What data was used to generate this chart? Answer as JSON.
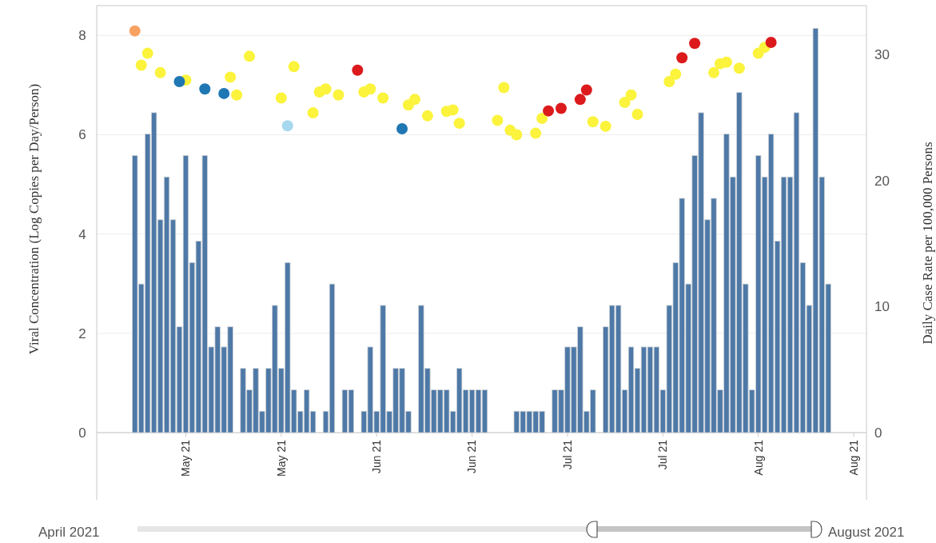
{
  "chart_data": {
    "type": "bar",
    "ylabel": "Viral Concentration (Log Copies per Day/Person)",
    "y2label": "Daily Case Rate per 100,000 Persons",
    "xlim": [
      "2021-04-19",
      "2021-08-18"
    ],
    "xticks": [
      {
        "value": "2021-05-03",
        "label": "May 21"
      },
      {
        "value": "2021-05-18",
        "label": "May 21"
      },
      {
        "value": "2021-06-02",
        "label": "Jun 21"
      },
      {
        "value": "2021-06-17",
        "label": "Jun 21"
      },
      {
        "value": "2021-07-02",
        "label": "Jul 21"
      },
      {
        "value": "2021-07-17",
        "label": "Jul 21"
      },
      {
        "value": "2021-08-01",
        "label": "Aug 21"
      },
      {
        "value": "2021-08-16",
        "label": "Aug 21"
      }
    ],
    "ylim": [
      0,
      8.6
    ],
    "yticks": [
      0,
      2,
      4,
      6,
      8
    ],
    "y2lim": [
      0,
      33.9
    ],
    "y2ticks": [
      0,
      10,
      20,
      30
    ],
    "grid": "y",
    "marker": "circle",
    "annotations": [
      "April 2021",
      "August 2021"
    ],
    "series": [
      {
        "axis": "y2",
        "color": "#4e79a7",
        "x": [
          "2021-04-25",
          "2021-04-26",
          "2021-04-27",
          "2021-04-28",
          "2021-04-29",
          "2021-04-30",
          "2021-05-01",
          "2021-05-02",
          "2021-05-03",
          "2021-05-04",
          "2021-05-05",
          "2021-05-06",
          "2021-05-07",
          "2021-05-08",
          "2021-05-09",
          "2021-05-10",
          "2021-05-11",
          "2021-05-12",
          "2021-05-13",
          "2021-05-14",
          "2021-05-15",
          "2021-05-16",
          "2021-05-17",
          "2021-05-18",
          "2021-05-19",
          "2021-05-20",
          "2021-05-21",
          "2021-05-22",
          "2021-05-23",
          "2021-05-24",
          "2021-05-25",
          "2021-05-26",
          "2021-05-27",
          "2021-05-28",
          "2021-05-29",
          "2021-05-30",
          "2021-05-31",
          "2021-06-01",
          "2021-06-02",
          "2021-06-03",
          "2021-06-04",
          "2021-06-05",
          "2021-06-06",
          "2021-06-07",
          "2021-06-08",
          "2021-06-09",
          "2021-06-10",
          "2021-06-11",
          "2021-06-12",
          "2021-06-13",
          "2021-06-14",
          "2021-06-15",
          "2021-06-16",
          "2021-06-17",
          "2021-06-18",
          "2021-06-19",
          "2021-06-20",
          "2021-06-21",
          "2021-06-22",
          "2021-06-23",
          "2021-06-24",
          "2021-06-25",
          "2021-06-26",
          "2021-06-27",
          "2021-06-28",
          "2021-06-29",
          "2021-06-30",
          "2021-07-01",
          "2021-07-02",
          "2021-07-03",
          "2021-07-04",
          "2021-07-05",
          "2021-07-06",
          "2021-07-07",
          "2021-07-08",
          "2021-07-09",
          "2021-07-10",
          "2021-07-11",
          "2021-07-12",
          "2021-07-13",
          "2021-07-14",
          "2021-07-15",
          "2021-07-16",
          "2021-07-17",
          "2021-07-18",
          "2021-07-19",
          "2021-07-20",
          "2021-07-21",
          "2021-07-22",
          "2021-07-23",
          "2021-07-24",
          "2021-07-25",
          "2021-07-26",
          "2021-07-27",
          "2021-07-28",
          "2021-07-29",
          "2021-07-30",
          "2021-07-31",
          "2021-08-01",
          "2021-08-02",
          "2021-08-03",
          "2021-08-04",
          "2021-08-05",
          "2021-08-06",
          "2021-08-07",
          "2021-08-08",
          "2021-08-09",
          "2021-08-10",
          "2021-08-11",
          "2021-08-12"
        ],
        "values": [
          22.0,
          11.8,
          23.7,
          25.4,
          16.9,
          20.3,
          16.9,
          8.4,
          22.0,
          13.5,
          15.2,
          22.0,
          6.8,
          8.4,
          6.8,
          8.4,
          0,
          5.1,
          3.4,
          5.1,
          1.7,
          5.1,
          10.1,
          5.1,
          13.5,
          3.4,
          1.7,
          3.4,
          1.7,
          0,
          1.7,
          11.8,
          0,
          3.4,
          3.4,
          0,
          1.7,
          6.8,
          1.7,
          10.1,
          1.7,
          5.1,
          5.1,
          1.7,
          0,
          10.1,
          5.1,
          3.4,
          3.4,
          3.4,
          1.7,
          5.1,
          3.4,
          3.4,
          3.4,
          3.4,
          0,
          0,
          0,
          0,
          1.7,
          1.7,
          1.7,
          1.7,
          1.7,
          0,
          3.4,
          3.4,
          6.8,
          6.8,
          8.4,
          1.7,
          3.4,
          0,
          8.4,
          10.1,
          10.1,
          3.4,
          6.8,
          5.1,
          6.8,
          6.8,
          6.8,
          3.4,
          10.1,
          13.5,
          18.6,
          11.8,
          22.0,
          25.4,
          16.9,
          18.6,
          3.4,
          23.7,
          20.3,
          27.0,
          11.8,
          3.4,
          22.0,
          20.3,
          23.7,
          15.2,
          20.3,
          20.3,
          25.4,
          13.5,
          10.1,
          32.1,
          20.3,
          11.8
        ]
      },
      {
        "type": "scatter",
        "color": "#f8a262",
        "x": [
          "2021-04-25"
        ],
        "values": [
          8.09
        ]
      },
      {
        "type": "scatter",
        "color": "#fbf33c",
        "x": [
          "2021-04-26",
          "2021-04-27",
          "2021-04-29",
          "2021-05-03",
          "2021-05-10",
          "2021-05-11",
          "2021-05-13",
          "2021-05-18",
          "2021-05-20",
          "2021-05-23",
          "2021-05-24",
          "2021-05-25",
          "2021-05-27",
          "2021-05-31",
          "2021-06-01",
          "2021-06-03",
          "2021-06-07",
          "2021-06-08",
          "2021-06-10",
          "2021-06-13",
          "2021-06-14",
          "2021-06-15",
          "2021-06-21",
          "2021-06-22",
          "2021-06-28",
          "2021-07-06",
          "2021-07-11",
          "2021-07-12",
          "2021-07-13",
          "2021-07-18",
          "2021-07-19",
          "2021-07-25",
          "2021-07-26",
          "2021-07-27",
          "2021-07-29",
          "2021-08-01",
          "2021-08-02"
        ],
        "values": [
          7.4,
          7.64,
          7.25,
          7.1,
          7.16,
          6.8,
          7.58,
          6.74,
          7.37,
          6.44,
          6.86,
          6.92,
          6.8,
          6.86,
          6.92,
          6.74,
          6.6,
          6.71,
          6.38,
          6.47,
          6.5,
          6.23,
          6.29,
          6.95,
          6.33,
          6.26,
          6.65,
          6.8,
          6.41,
          7.07,
          7.22,
          7.25,
          7.43,
          7.46,
          7.34,
          7.64,
          7.76
        ]
      },
      {
        "type": "scatter",
        "color": "#1f77b4",
        "x": [
          "2021-05-02",
          "2021-05-06",
          "2021-05-09",
          "2021-06-06"
        ],
        "values": [
          7.07,
          6.92,
          6.83,
          6.12
        ]
      },
      {
        "type": "scatter",
        "color": "#dc1a1c",
        "x": [
          "2021-05-30",
          "2021-06-29",
          "2021-07-01",
          "2021-07-04",
          "2021-07-05",
          "2021-07-20",
          "2021-07-22",
          "2021-08-03"
        ],
        "values": [
          7.3,
          6.48,
          6.53,
          6.71,
          6.9,
          7.55,
          7.84,
          7.86
        ]
      },
      {
        "type": "scatter",
        "color": "#a6d8ee",
        "x": [
          "2021-05-19"
        ],
        "values": [
          6.18
        ]
      },
      {
        "type": "scatter",
        "color": "#fbf33c",
        "x": [
          "2021-06-23",
          "2021-06-24",
          "2021-06-27",
          "2021-07-08"
        ],
        "values": [
          6.09,
          6.0,
          6.03,
          6.17
        ]
      }
    ]
  }
}
